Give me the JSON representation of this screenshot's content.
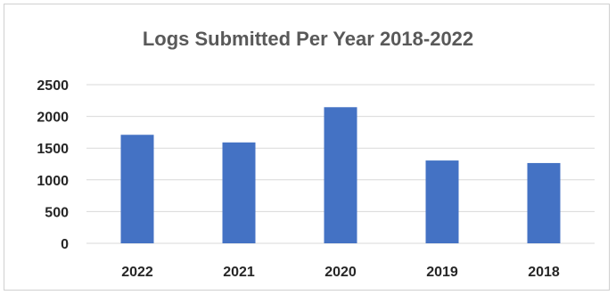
{
  "chart_data": {
    "type": "bar",
    "title": "Logs Submitted Per Year 2018-2022",
    "categories": [
      "2022",
      "2021",
      "2020",
      "2019",
      "2018"
    ],
    "values": [
      1710,
      1590,
      2145,
      1305,
      1265
    ],
    "xlabel": "",
    "ylabel": "",
    "ylim": [
      0,
      2500
    ],
    "yticks": [
      "0",
      "500",
      "1000",
      "1500",
      "2000",
      "2500"
    ],
    "grid": true,
    "legend": "none",
    "bar_color": "#4472c4",
    "grid_color": "#d9d9d9"
  }
}
